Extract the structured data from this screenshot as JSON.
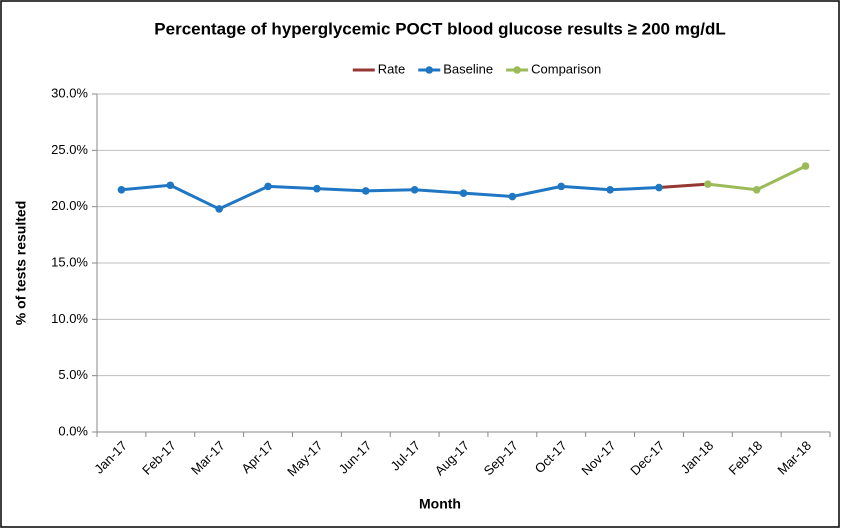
{
  "chart_data": {
    "type": "line",
    "title": "Percentage of hyperglycemic POCT blood glucose results ≥ 200 mg/dL",
    "x_label": "Month",
    "y_label": "% of tests resulted",
    "categories": [
      "Jan-17",
      "Feb-17",
      "Mar-17",
      "Apr-17",
      "May-17",
      "Jun-17",
      "Jul-17",
      "Aug-17",
      "Sep-17",
      "Oct-17",
      "Nov-17",
      "Dec-17",
      "Jan-18",
      "Feb-18",
      "Mar-18"
    ],
    "series": [
      {
        "name": "Rate",
        "color": "#953735",
        "marker": false,
        "values": [
          null,
          null,
          null,
          null,
          null,
          null,
          null,
          null,
          null,
          null,
          null,
          21.7,
          22.0,
          null,
          null
        ]
      },
      {
        "name": "Baseline",
        "color": "#1f77c4",
        "marker": true,
        "values": [
          21.5,
          21.9,
          19.8,
          21.8,
          21.6,
          21.4,
          21.5,
          21.2,
          20.9,
          21.8,
          21.5,
          21.7,
          null,
          null,
          null
        ]
      },
      {
        "name": "Comparison",
        "color": "#9bbb59",
        "marker": true,
        "values": [
          null,
          null,
          null,
          null,
          null,
          null,
          null,
          null,
          null,
          null,
          null,
          null,
          22.0,
          21.5,
          23.6
        ]
      }
    ],
    "ylim": [
      0,
      30
    ],
    "yticks": [
      {
        "value": 0,
        "label": "0.0%"
      },
      {
        "value": 5,
        "label": "5.0%"
      },
      {
        "value": 10,
        "label": "10.0%"
      },
      {
        "value": 15,
        "label": "15.0%"
      },
      {
        "value": 20,
        "label": "20.0%"
      },
      {
        "value": 25,
        "label": "25.0%"
      },
      {
        "value": 30,
        "label": "30.0%"
      }
    ],
    "grid": true,
    "legend": "top"
  }
}
